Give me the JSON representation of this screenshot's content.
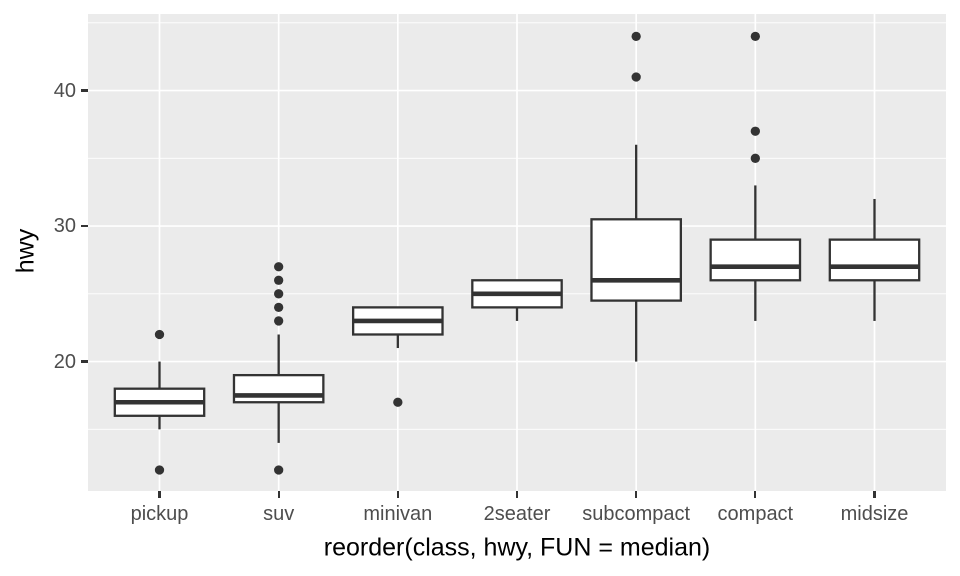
{
  "figure": {
    "background": "#FFFFFF"
  },
  "chart_data": {
    "type": "boxplot",
    "title": "",
    "xlabel": "reorder(class, hwy, FUN = median)",
    "ylabel": "hwy",
    "categories": [
      "pickup",
      "suv",
      "minivan",
      "2seater",
      "subcompact",
      "compact",
      "midsize"
    ],
    "y_ticks": [
      20,
      30,
      40
    ],
    "y_minor_gridlines": [
      15,
      25,
      35,
      45
    ],
    "ylim": [
      10.45,
      45.65
    ],
    "grid": true,
    "legend": false,
    "series": [
      {
        "category": "pickup",
        "whisker_low": 15,
        "q1": 16,
        "median": 17,
        "q3": 18,
        "whisker_high": 20,
        "outliers": [
          12,
          22
        ]
      },
      {
        "category": "suv",
        "whisker_low": 14,
        "q1": 17,
        "median": 17.5,
        "q3": 19,
        "whisker_high": 22,
        "outliers": [
          12,
          23,
          24,
          25,
          26,
          27
        ]
      },
      {
        "category": "minivan",
        "whisker_low": 21,
        "q1": 22,
        "median": 23,
        "q3": 24,
        "whisker_high": 24,
        "outliers": [
          17
        ]
      },
      {
        "category": "2seater",
        "whisker_low": 23,
        "q1": 24,
        "median": 25,
        "q3": 26,
        "whisker_high": 26,
        "outliers": []
      },
      {
        "category": "subcompact",
        "whisker_low": 20,
        "q1": 24.5,
        "median": 26,
        "q3": 30.5,
        "whisker_high": 36,
        "outliers": [
          41,
          44
        ]
      },
      {
        "category": "compact",
        "whisker_low": 23,
        "q1": 26,
        "median": 27,
        "q3": 29,
        "whisker_high": 33,
        "outliers": [
          35,
          37,
          44
        ]
      },
      {
        "category": "midsize",
        "whisker_low": 23,
        "q1": 26,
        "median": 27,
        "q3": 29,
        "whisker_high": 32,
        "outliers": []
      }
    ]
  },
  "style": {
    "panel_bg": "#EBEBEB",
    "gridline_color": "#FFFFFF",
    "box_stroke": "#333333",
    "box_fill": "#FFFFFF",
    "outlier_color": "#333333",
    "tick_mark_color": "#333333",
    "tick_label_color": "#4D4D4D",
    "axis_title_color": "#000000"
  }
}
